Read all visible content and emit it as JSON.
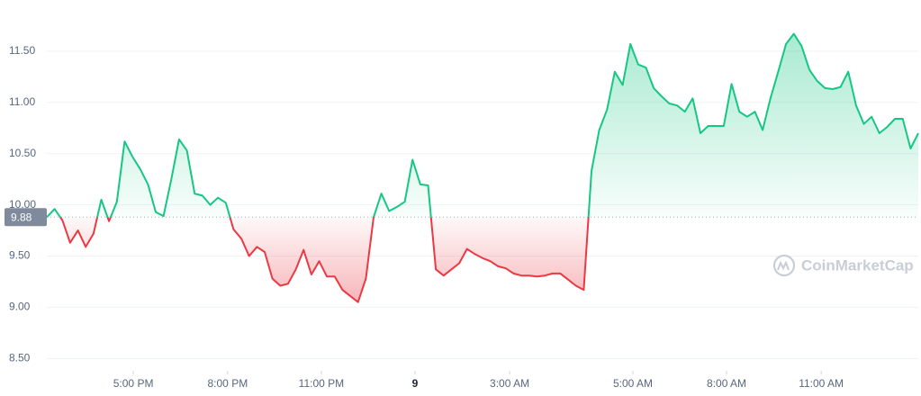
{
  "chart_data": {
    "type": "line",
    "baseline": 9.88,
    "watermark": "CoinMarketCap",
    "up_color": "#16c784",
    "down_color": "#ea3943",
    "x": [
      0,
      0.25,
      0.5,
      0.75,
      1,
      1.25,
      1.5,
      1.75,
      2,
      2.25,
      2.5,
      2.75,
      3,
      3.25,
      3.5,
      3.75,
      4,
      4.25,
      4.5,
      4.75,
      5,
      5.25,
      5.5,
      5.75,
      6,
      6.25,
      6.5,
      6.75,
      7,
      7.25,
      7.5,
      7.75,
      8,
      8.25,
      8.5,
      8.75,
      9,
      9.25,
      9.5,
      9.75,
      10,
      10.25,
      10.5,
      10.75,
      11,
      11.25,
      11.5,
      11.75,
      12,
      12.25,
      12.5,
      12.75,
      13,
      13.25,
      13.5,
      13.75,
      14,
      14.25,
      14.5,
      14.75,
      15,
      15.25,
      15.5,
      15.75,
      16,
      16.25,
      16.5,
      16.75,
      17,
      17.25,
      17.5,
      17.75,
      18,
      18.25,
      18.5,
      18.75,
      19,
      19.25,
      19.5,
      19.75,
      20,
      20.25,
      20.5,
      20.75,
      21,
      21.25,
      21.5,
      21.75,
      22,
      22.25,
      22.5,
      22.75,
      23,
      23.25,
      23.5,
      23.75,
      24,
      24.25,
      24.5,
      24.75,
      25,
      25.25,
      25.5,
      25.75,
      26,
      26.25,
      26.5,
      26.75,
      27,
      27.25,
      27.5,
      27.75,
      28
    ],
    "series": [
      {
        "values": [
          9.88,
          9.96,
          9.85,
          9.63,
          9.75,
          9.59,
          9.72,
          10.05,
          9.84,
          10.03,
          10.62,
          10.47,
          10.35,
          10.2,
          9.93,
          9.89,
          10.25,
          10.64,
          10.53,
          10.11,
          10.09,
          10.0,
          10.07,
          10.02,
          9.76,
          9.67,
          9.5,
          9.59,
          9.54,
          9.28,
          9.21,
          9.23,
          9.37,
          9.56,
          9.32,
          9.45,
          9.3,
          9.3,
          9.17,
          9.11,
          9.05,
          9.28,
          9.88,
          10.11,
          9.94,
          9.98,
          10.03,
          10.44,
          10.2,
          10.19,
          9.37,
          9.31,
          9.37,
          9.43,
          9.57,
          9.52,
          9.48,
          9.45,
          9.4,
          9.38,
          9.33,
          9.31,
          9.31,
          9.3,
          9.31,
          9.33,
          9.33,
          9.27,
          9.21,
          9.17,
          10.33,
          10.73,
          10.93,
          11.3,
          11.17,
          11.57,
          11.37,
          11.34,
          11.14,
          11.06,
          10.99,
          10.97,
          10.91,
          11.04,
          10.7,
          10.77,
          10.77,
          10.77,
          11.18,
          10.91,
          10.86,
          10.91,
          10.73,
          11.04,
          11.3,
          11.57,
          11.67,
          11.55,
          11.32,
          11.21,
          11.14,
          11.13,
          11.15,
          11.3,
          10.97,
          10.79,
          10.86,
          10.7,
          10.76,
          10.84,
          10.84,
          10.55,
          10.7
        ]
      }
    ],
    "xlim": [
      0,
      28
    ],
    "xticks": [
      {
        "value": 2.78,
        "label": "5:00 PM"
      },
      {
        "value": 5.81,
        "label": "8:00 PM"
      },
      {
        "value": 8.82,
        "label": "11:00 PM"
      },
      {
        "value": 11.83,
        "label": "9"
      },
      {
        "value": 14.87,
        "label": "3:00 AM"
      },
      {
        "value": 18.83,
        "label": "5:00 AM"
      },
      {
        "value": 21.84,
        "label": "8:00 AM"
      },
      {
        "value": 24.88,
        "label": "11:00 AM"
      }
    ],
    "ylim": [
      8.38,
      12.0
    ],
    "yticks": [
      {
        "value": 8.5,
        "label": "8.50"
      },
      {
        "value": 9,
        "label": "9.00"
      },
      {
        "value": 9.5,
        "label": "9.50"
      },
      {
        "value": 10,
        "label": "10.00"
      },
      {
        "value": 10.5,
        "label": "10.50"
      },
      {
        "value": 11,
        "label": "11.00"
      },
      {
        "value": 11.5,
        "label": "11.50"
      }
    ],
    "grid": true
  }
}
